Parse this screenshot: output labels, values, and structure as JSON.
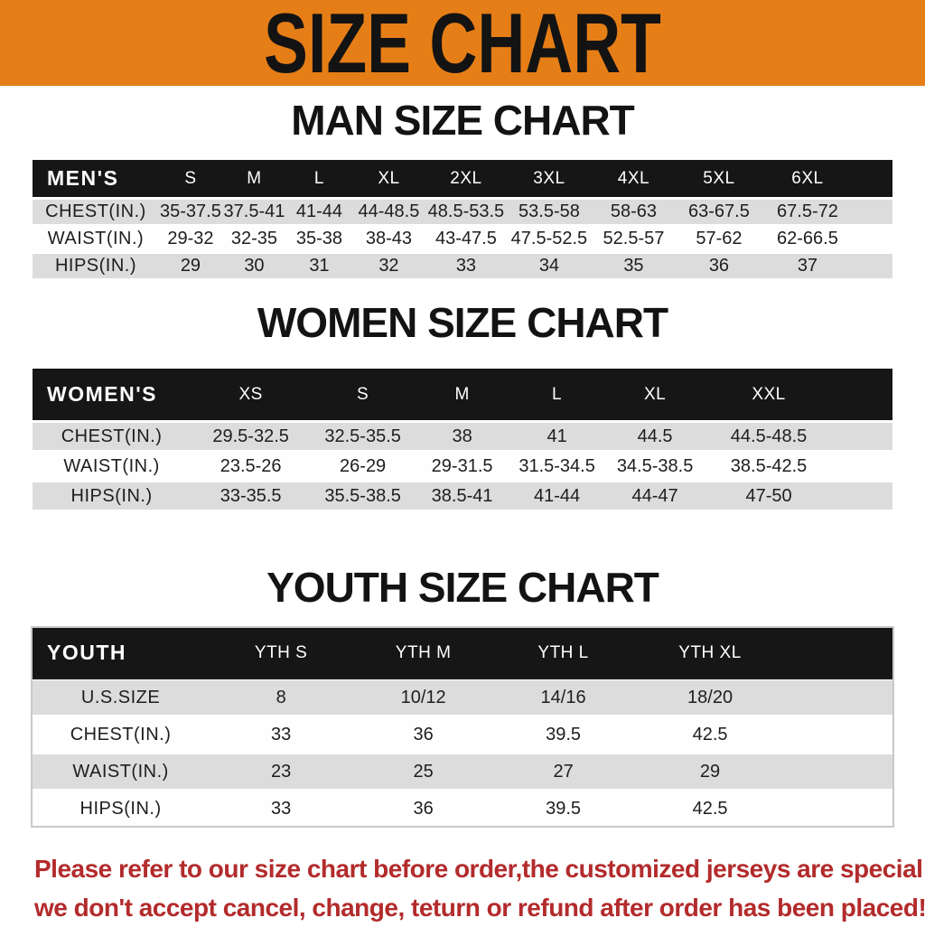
{
  "banner": {
    "title": "SIZE CHART",
    "bg_color": "#E67E17",
    "text_color": "#131313"
  },
  "men": {
    "heading": "MAN SIZE CHART",
    "label": "MEN'S",
    "columns": [
      "S",
      "M",
      "L",
      "XL",
      "2XL",
      "3XL",
      "4XL",
      "5XL",
      "6XL"
    ],
    "rows": [
      {
        "label": "CHEST(IN.)",
        "values": [
          "35-37.5",
          "37.5-41",
          "41-44",
          "44-48.5",
          "48.5-53.5",
          "53.5-58",
          "58-63",
          "63-67.5",
          "67.5-72"
        ]
      },
      {
        "label": "WAIST(IN.)",
        "values": [
          "29-32",
          "32-35",
          "35-38",
          "38-43",
          "43-47.5",
          "47.5-52.5",
          "52.5-57",
          "57-62",
          "62-66.5"
        ]
      },
      {
        "label": "HIPS(IN.)",
        "values": [
          "29",
          "30",
          "31",
          "32",
          "33",
          "34",
          "35",
          "36",
          "37"
        ]
      }
    ]
  },
  "women": {
    "heading": "WOMEN SIZE CHART",
    "label": "WOMEN'S",
    "columns": [
      "XS",
      "S",
      "M",
      "L",
      "XL",
      "XXL"
    ],
    "rows": [
      {
        "label": "CHEST(IN.)",
        "values": [
          "29.5-32.5",
          "32.5-35.5",
          "38",
          "41",
          "44.5",
          "44.5-48.5"
        ]
      },
      {
        "label": "WAIST(IN.)",
        "values": [
          "23.5-26",
          "26-29",
          "29-31.5",
          "31.5-34.5",
          "34.5-38.5",
          "38.5-42.5"
        ]
      },
      {
        "label": "HIPS(IN.)",
        "values": [
          "33-35.5",
          "35.5-38.5",
          "38.5-41",
          "41-44",
          "44-47",
          "47-50"
        ]
      }
    ]
  },
  "youth": {
    "heading": "YOUTH SIZE CHART",
    "label": "YOUTH",
    "columns": [
      "YTH S",
      "YTH M",
      "YTH L",
      "YTH XL"
    ],
    "rows": [
      {
        "label": "U.S.SIZE",
        "values": [
          "8",
          "10/12",
          "14/16",
          "18/20"
        ]
      },
      {
        "label": "CHEST(IN.)",
        "values": [
          "33",
          "36",
          "39.5",
          "42.5"
        ]
      },
      {
        "label": "WAIST(IN.)",
        "values": [
          "23",
          "25",
          "27",
          "29"
        ]
      },
      {
        "label": "HIPS(IN.)",
        "values": [
          "33",
          "36",
          "39.5",
          "42.5"
        ]
      }
    ]
  },
  "footer": {
    "color": "#B32B2C",
    "lines": [
      "Please refer to our size chart before order,the customized jerseys are special products,",
      "we don't accept cancel, change, teturn or refund after order has been placed!"
    ]
  },
  "colors": {
    "header_bar": "#161616",
    "shaded_row": "#DCDCDC",
    "plain_row": "#FEFEFE"
  }
}
